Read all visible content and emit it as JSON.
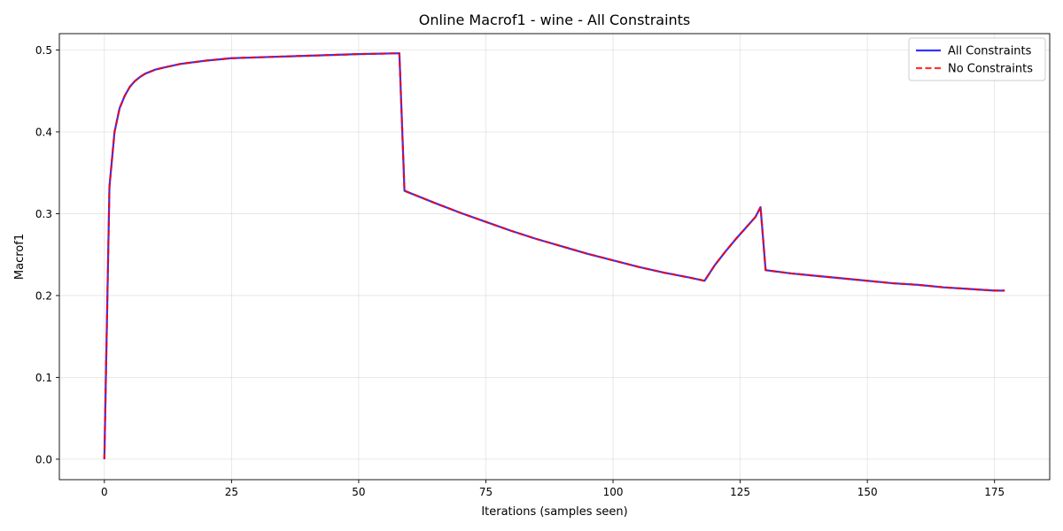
{
  "chart_data": {
    "type": "line",
    "title": "Online Macrof1 - wine - All Constraints",
    "xlabel": "Iterations (samples seen)",
    "ylabel": "Macrof1",
    "xlim": [
      -8.85,
      185.85
    ],
    "ylim": [
      -0.025,
      0.52
    ],
    "xticks": [
      0,
      25,
      50,
      75,
      100,
      125,
      150,
      175
    ],
    "xtick_labels": [
      "0",
      "25",
      "50",
      "75",
      "100",
      "125",
      "150",
      "175"
    ],
    "yticks": [
      0.0,
      0.1,
      0.2,
      0.3,
      0.4,
      0.5
    ],
    "ytick_labels": [
      "0.0",
      "0.1",
      "0.2",
      "0.3",
      "0.4",
      "0.5"
    ],
    "grid": true,
    "legend_position": "top-right",
    "series": [
      {
        "name": "All Constraints",
        "color": "#0000ff",
        "style": "solid",
        "x": [
          0,
          1,
          2,
          3,
          4,
          5,
          6,
          7,
          8,
          10,
          12,
          15,
          20,
          25,
          30,
          40,
          50,
          58,
          59,
          65,
          70,
          75,
          80,
          85,
          90,
          95,
          100,
          105,
          110,
          115,
          118,
          120,
          122,
          124,
          126,
          128,
          129,
          130,
          135,
          140,
          145,
          150,
          155,
          160,
          165,
          170,
          175,
          177
        ],
        "y": [
          0.0,
          0.333,
          0.4,
          0.429,
          0.444,
          0.455,
          0.462,
          0.467,
          0.471,
          0.476,
          0.479,
          0.483,
          0.487,
          0.49,
          0.491,
          0.493,
          0.495,
          0.496,
          0.328,
          0.313,
          0.301,
          0.29,
          0.279,
          0.269,
          0.26,
          0.251,
          0.243,
          0.235,
          0.228,
          0.222,
          0.218,
          0.237,
          0.253,
          0.268,
          0.282,
          0.296,
          0.308,
          0.231,
          0.227,
          0.224,
          0.221,
          0.218,
          0.215,
          0.213,
          0.21,
          0.208,
          0.206,
          0.206
        ]
      },
      {
        "name": "No Constraints",
        "color": "#ff0000",
        "style": "dashed",
        "x": [
          0,
          1,
          2,
          3,
          4,
          5,
          6,
          7,
          8,
          10,
          12,
          15,
          20,
          25,
          30,
          40,
          50,
          58,
          59,
          65,
          70,
          75,
          80,
          85,
          90,
          95,
          100,
          105,
          110,
          115,
          118,
          120,
          122,
          124,
          126,
          128,
          129,
          130,
          135,
          140,
          145,
          150,
          155,
          160,
          165,
          170,
          175,
          177
        ],
        "y": [
          0.0,
          0.333,
          0.4,
          0.429,
          0.444,
          0.455,
          0.462,
          0.467,
          0.471,
          0.476,
          0.479,
          0.483,
          0.487,
          0.49,
          0.491,
          0.493,
          0.495,
          0.496,
          0.328,
          0.313,
          0.301,
          0.29,
          0.279,
          0.269,
          0.26,
          0.251,
          0.243,
          0.235,
          0.228,
          0.222,
          0.218,
          0.237,
          0.253,
          0.268,
          0.282,
          0.296,
          0.308,
          0.231,
          0.227,
          0.224,
          0.221,
          0.218,
          0.215,
          0.213,
          0.21,
          0.208,
          0.206,
          0.206
        ]
      }
    ]
  }
}
